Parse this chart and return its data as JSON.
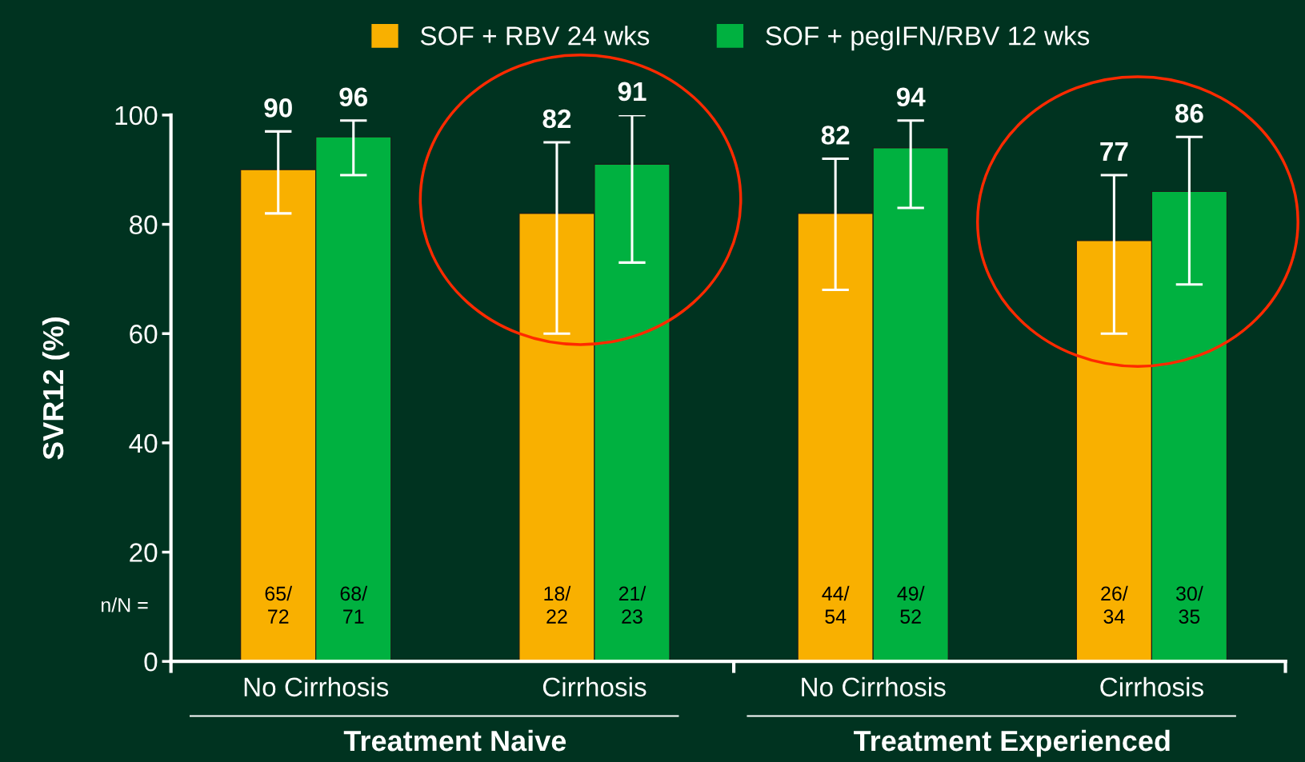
{
  "chart_data": {
    "type": "bar",
    "ylabel": "SVR12 (%)",
    "categories": [
      "No Cirrhosis",
      "Cirrhosis",
      "No Cirrhosis",
      "Cirrhosis"
    ],
    "series": [
      {
        "name": "SOF + RBV 24 wks",
        "color": "#f9b000",
        "values": [
          90,
          82,
          82,
          77
        ],
        "errors": [
          [
            82,
            97
          ],
          [
            60,
            95
          ],
          [
            68,
            92
          ],
          [
            60,
            89
          ]
        ],
        "value_labels": [
          "90",
          "82",
          "82",
          "77"
        ]
      },
      {
        "name": "SOF + pegIFN/RBV 12 wks",
        "color": "#00b140",
        "values": [
          96,
          91,
          94,
          86
        ],
        "errors": [
          [
            89,
            99
          ],
          [
            73,
            100
          ],
          [
            83,
            99
          ],
          [
            69,
            96
          ]
        ],
        "value_labels": [
          "96",
          "91",
          "94",
          "86"
        ]
      }
    ],
    "ylim": [
      0,
      100
    ],
    "yticks": [
      0,
      20,
      40,
      60,
      80,
      100
    ],
    "legend": "top",
    "grid": false,
    "annotations": [
      "n/N =",
      "Treatment Naive",
      "Treatment Experienced",
      "65/\n72",
      "18/\n22",
      "44/\n54",
      "26/\n34",
      "68/\n71",
      "21/\n23",
      "49/\n52",
      "30/\n35"
    ]
  }
}
